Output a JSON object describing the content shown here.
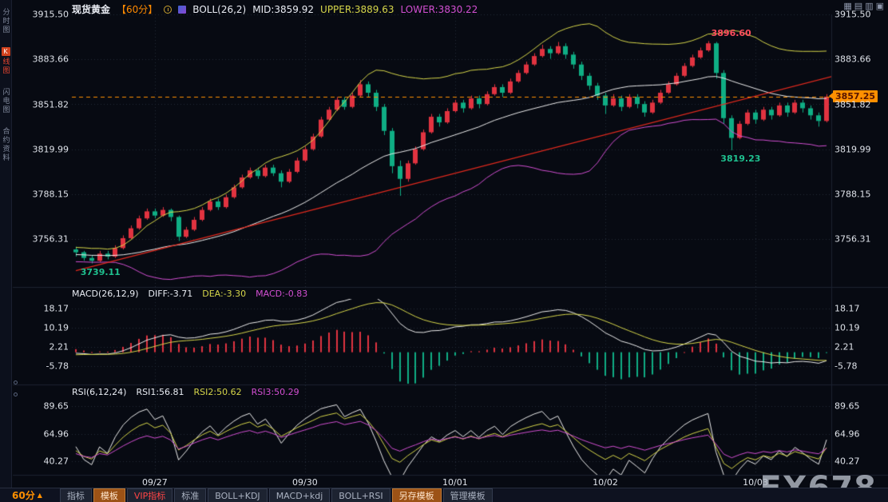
{
  "colors": {
    "bg": "#070a12",
    "up": "#e13340",
    "down": "#0fae84",
    "boll_mid": "#ededed",
    "boll_upper": "#d6d64a",
    "boll_lower": "#d24fd2",
    "trend": "#e32a1e",
    "grid": "#242b3a",
    "price_line": "#ff9000",
    "axis_text": "#dde1e8"
  },
  "sidebar": {
    "tabs": [
      {
        "label": "分时图"
      },
      {
        "label": "K线图",
        "badge": "K",
        "rest": "线图",
        "active": true
      },
      {
        "label": "闪电图"
      },
      {
        "label": "合约资料"
      }
    ]
  },
  "header": {
    "symbol": "现货黄金",
    "period": "【60分】",
    "boll": "BOLL(26,2)",
    "mid": "MID:3859.92",
    "upper": "UPPER:3889.63",
    "lower": "LOWER:3830.22",
    "window_icons": [
      "▦",
      "▤",
      "▥",
      "▣"
    ]
  },
  "main_axis": {
    "labels": [
      "3915.50",
      "3883.66",
      "3851.82",
      "3819.99",
      "3788.15",
      "3756.31"
    ],
    "values": [
      3915.5,
      3883.66,
      3851.82,
      3819.99,
      3788.15,
      3756.31
    ]
  },
  "price_line": {
    "label": "3857.25",
    "value": 3857.25
  },
  "annotations": [
    {
      "text": "3896.60",
      "candle": 80,
      "price": 3896.6,
      "pos": "above",
      "color": "#ff4d5e"
    },
    {
      "text": "3819.23",
      "candle": 83,
      "price": 3819.23,
      "pos": "below",
      "color": "#1fc08f"
    },
    {
      "text": "3739.11",
      "candle": 2,
      "price": 3739.11,
      "pos": "below",
      "color": "#1fc08f"
    }
  ],
  "macd": {
    "header": {
      "name": "MACD(26,12,9)",
      "diff": "DIFF:-3.71",
      "dea": "DEA:-3.30",
      "macd": "MACD:-0.83"
    },
    "axis_labels": [
      "18.17",
      "10.19",
      "2.21",
      "-5.78"
    ],
    "axis_values": [
      18.17,
      10.19,
      2.21,
      -5.78
    ]
  },
  "rsi": {
    "header": {
      "name": "RSI(6,12,24)",
      "rsi1": "RSI1:56.81",
      "rsi2": "RSI2:50.62",
      "rsi3": "RSI3:50.29"
    },
    "axis_labels": [
      "89.65",
      "64.96",
      "40.27"
    ],
    "axis_values": [
      89.65,
      64.96,
      40.27
    ]
  },
  "x_axis": {
    "date_labels": [
      "09/27",
      "09/30",
      "10/01",
      "10/02",
      "10/03"
    ],
    "tick_indices": [
      10,
      29,
      48,
      67,
      86
    ]
  },
  "toolbar": {
    "period": "60分",
    "arrow": "▲",
    "tabs": [
      {
        "label": "指标"
      },
      {
        "label": "模板",
        "style": "orange"
      },
      {
        "label": "VIP指标",
        "style": "vip"
      },
      {
        "label": "标准"
      },
      {
        "label": "BOLL+KDJ"
      },
      {
        "label": "MACD+kdj"
      },
      {
        "label": "BOLL+RSI"
      },
      {
        "label": "另存模板",
        "style": "orange"
      },
      {
        "label": "管理模板"
      }
    ]
  },
  "watermark": "FX678",
  "trendline": {
    "start": {
      "index": 0,
      "price": 3734
    },
    "end": {
      "index": 96,
      "price": 3872
    },
    "color": "#e32a1e"
  },
  "chart_data": {
    "type": "candlestick",
    "title": "现货黄金 60分 K线图",
    "interval": "60min",
    "ohlc_format": [
      "open",
      "high",
      "low",
      "close"
    ],
    "history_seed_closes": [
      3752,
      3748,
      3750,
      3746,
      3749,
      3745,
      3747,
      3743,
      3748,
      3744,
      3746,
      3742,
      3745,
      3741,
      3744,
      3740,
      3743,
      3746,
      3742,
      3745,
      3747,
      3744,
      3748,
      3745,
      3749,
      3746
    ],
    "candles": [
      [
        3749,
        3751,
        3744,
        3747
      ],
      [
        3747,
        3748,
        3741,
        3743
      ],
      [
        3743,
        3745,
        3739.1,
        3741
      ],
      [
        3741,
        3748,
        3740,
        3746
      ],
      [
        3746,
        3748,
        3742,
        3744
      ],
      [
        3744,
        3752,
        3743,
        3750
      ],
      [
        3750,
        3759,
        3749,
        3757
      ],
      [
        3757,
        3766,
        3756,
        3764
      ],
      [
        3764,
        3773,
        3763,
        3771
      ],
      [
        3771,
        3778,
        3770,
        3776
      ],
      [
        3776,
        3778,
        3771,
        3773
      ],
      [
        3773,
        3779,
        3772,
        3777
      ],
      [
        3777,
        3778,
        3769,
        3772
      ],
      [
        3772,
        3773,
        3755,
        3758
      ],
      [
        3758,
        3765,
        3757,
        3763
      ],
      [
        3763,
        3772,
        3762,
        3770
      ],
      [
        3770,
        3779,
        3769,
        3777
      ],
      [
        3777,
        3785,
        3776,
        3783
      ],
      [
        3783,
        3785,
        3777,
        3779
      ],
      [
        3779,
        3788,
        3778,
        3786
      ],
      [
        3786,
        3795,
        3785,
        3793
      ],
      [
        3793,
        3802,
        3792,
        3800
      ],
      [
        3800,
        3807,
        3799,
        3805
      ],
      [
        3805,
        3807,
        3799,
        3801
      ],
      [
        3801,
        3809,
        3800,
        3807
      ],
      [
        3807,
        3809,
        3801,
        3803
      ],
      [
        3803,
        3805,
        3793,
        3797
      ],
      [
        3797,
        3806,
        3796,
        3804
      ],
      [
        3804,
        3814,
        3803,
        3812
      ],
      [
        3812,
        3822,
        3811,
        3820
      ],
      [
        3820,
        3831,
        3819,
        3829
      ],
      [
        3829,
        3843,
        3828,
        3841
      ],
      [
        3841,
        3850,
        3840,
        3848
      ],
      [
        3848,
        3857,
        3847,
        3855
      ],
      [
        3855,
        3857,
        3848,
        3850
      ],
      [
        3850,
        3860,
        3849,
        3858
      ],
      [
        3858,
        3869,
        3857,
        3866
      ],
      [
        3866,
        3868,
        3857,
        3860
      ],
      [
        3860,
        3862,
        3847,
        3850
      ],
      [
        3850,
        3852,
        3830,
        3833
      ],
      [
        3833,
        3835,
        3803,
        3808
      ],
      [
        3808,
        3812,
        3787,
        3799
      ],
      [
        3799,
        3812,
        3797,
        3810
      ],
      [
        3810,
        3822,
        3809,
        3820
      ],
      [
        3820,
        3834,
        3819,
        3832
      ],
      [
        3832,
        3845,
        3831,
        3843
      ],
      [
        3843,
        3845,
        3836,
        3839
      ],
      [
        3839,
        3849,
        3838,
        3847
      ],
      [
        3847,
        3855,
        3846,
        3853
      ],
      [
        3853,
        3855,
        3846,
        3849
      ],
      [
        3849,
        3858,
        3848,
        3856
      ],
      [
        3856,
        3858,
        3849,
        3852
      ],
      [
        3852,
        3861,
        3851,
        3859
      ],
      [
        3859,
        3866,
        3858,
        3864
      ],
      [
        3864,
        3866,
        3857,
        3860
      ],
      [
        3860,
        3870,
        3859,
        3868
      ],
      [
        3868,
        3876,
        3867,
        3874
      ],
      [
        3874,
        3882,
        3873,
        3880
      ],
      [
        3880,
        3888,
        3879,
        3886
      ],
      [
        3886,
        3894,
        3885,
        3891
      ],
      [
        3891,
        3893,
        3884,
        3888
      ],
      [
        3888,
        3896,
        3887,
        3893
      ],
      [
        3893,
        3895,
        3884,
        3887
      ],
      [
        3887,
        3889,
        3877,
        3880
      ],
      [
        3880,
        3882,
        3869,
        3872
      ],
      [
        3872,
        3874,
        3862,
        3865
      ],
      [
        3865,
        3867,
        3855,
        3858
      ],
      [
        3858,
        3860,
        3845,
        3851
      ],
      [
        3851,
        3859,
        3850,
        3856
      ],
      [
        3856,
        3858,
        3847,
        3850
      ],
      [
        3850,
        3859,
        3849,
        3857
      ],
      [
        3857,
        3859,
        3849,
        3852
      ],
      [
        3852,
        3854,
        3843,
        3846
      ],
      [
        3846,
        3855,
        3845,
        3853
      ],
      [
        3853,
        3862,
        3852,
        3860
      ],
      [
        3860,
        3868,
        3859,
        3866
      ],
      [
        3866,
        3874,
        3865,
        3872
      ],
      [
        3872,
        3881,
        3871,
        3879
      ],
      [
        3879,
        3887,
        3878,
        3885
      ],
      [
        3885,
        3892,
        3884,
        3890
      ],
      [
        3890,
        3896.6,
        3889,
        3895
      ],
      [
        3895,
        3896,
        3870,
        3874
      ],
      [
        3874,
        3876,
        3838,
        3842
      ],
      [
        3842,
        3844,
        3819.2,
        3828
      ],
      [
        3828,
        3840,
        3827,
        3838
      ],
      [
        3838,
        3848,
        3837,
        3846
      ],
      [
        3846,
        3848,
        3838,
        3841
      ],
      [
        3841,
        3850,
        3840,
        3848
      ],
      [
        3848,
        3850,
        3841,
        3844
      ],
      [
        3844,
        3853,
        3843,
        3851
      ],
      [
        3851,
        3853,
        3843,
        3846
      ],
      [
        3846,
        3855,
        3845,
        3853
      ],
      [
        3853,
        3855,
        3846,
        3849
      ],
      [
        3849,
        3851,
        3841,
        3844
      ],
      [
        3844,
        3846,
        3836,
        3840
      ],
      [
        3840,
        3859,
        3839,
        3857.25
      ]
    ],
    "y_range": [
      3723,
      3915.5
    ],
    "y_ticks": [
      3915.5,
      3883.66,
      3851.82,
      3819.99,
      3788.15,
      3756.31
    ],
    "x_tick_labels": [
      "09/27",
      "09/30",
      "10/01",
      "10/02",
      "10/03"
    ],
    "x_tick_candle_indices": [
      10,
      29,
      48,
      67,
      86
    ],
    "last_price": 3857.25,
    "marked_high": 3896.6,
    "marked_low": 3819.23,
    "session_low_left": 3739.11,
    "indicators": {
      "boll": {
        "period": 26,
        "mult": 2,
        "mid": 3859.92,
        "upper": 3889.63,
        "lower": 3830.22
      },
      "macd": {
        "fast": 12,
        "slow": 26,
        "signal": 9,
        "diff": -3.71,
        "dea": -3.3,
        "macd": -0.83,
        "range": [
          -13,
          22
        ]
      },
      "rsi": {
        "periods": [
          6,
          12,
          24
        ],
        "values": [
          56.81,
          50.62,
          50.29
        ],
        "range": [
          28,
          97
        ]
      }
    }
  }
}
